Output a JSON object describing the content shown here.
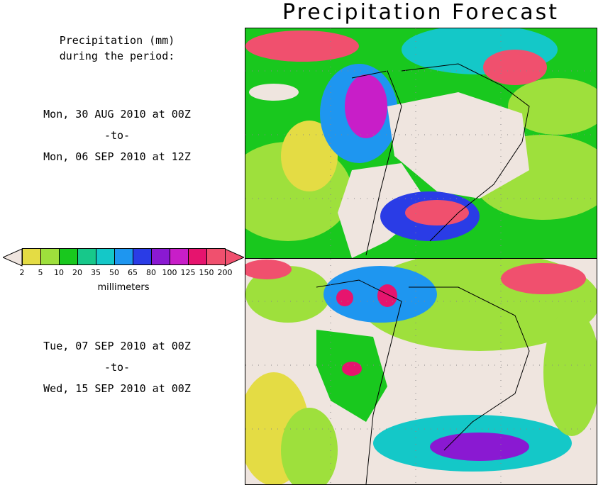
{
  "title": "Precipitation Forecast",
  "header": {
    "line1": "Precipitation (mm)",
    "line2": "during the period:"
  },
  "period1": {
    "start": "Mon, 30 AUG 2010 at 00Z",
    "sep": "-to-",
    "end": "Mon, 06 SEP 2010 at 12Z"
  },
  "period2": {
    "start": "Tue, 07 SEP 2010 at 00Z",
    "sep": "-to-",
    "end": "Wed, 15 SEP 2010 at 00Z"
  },
  "colorbar": {
    "units": "millimeters",
    "labels": [
      "2",
      "5",
      "10",
      "20",
      "35",
      "50",
      "65",
      "80",
      "100",
      "125",
      "150",
      "200"
    ],
    "colors": [
      "#e4dc44",
      "#9ee03c",
      "#19c81e",
      "#17c88a",
      "#14c8c8",
      "#1e96f0",
      "#2a3ce6",
      "#8a19d2",
      "#c81ec8",
      "#e6146e",
      "#f0506e"
    ],
    "under_color": "#efe5df",
    "over_color": "#f0506e"
  }
}
